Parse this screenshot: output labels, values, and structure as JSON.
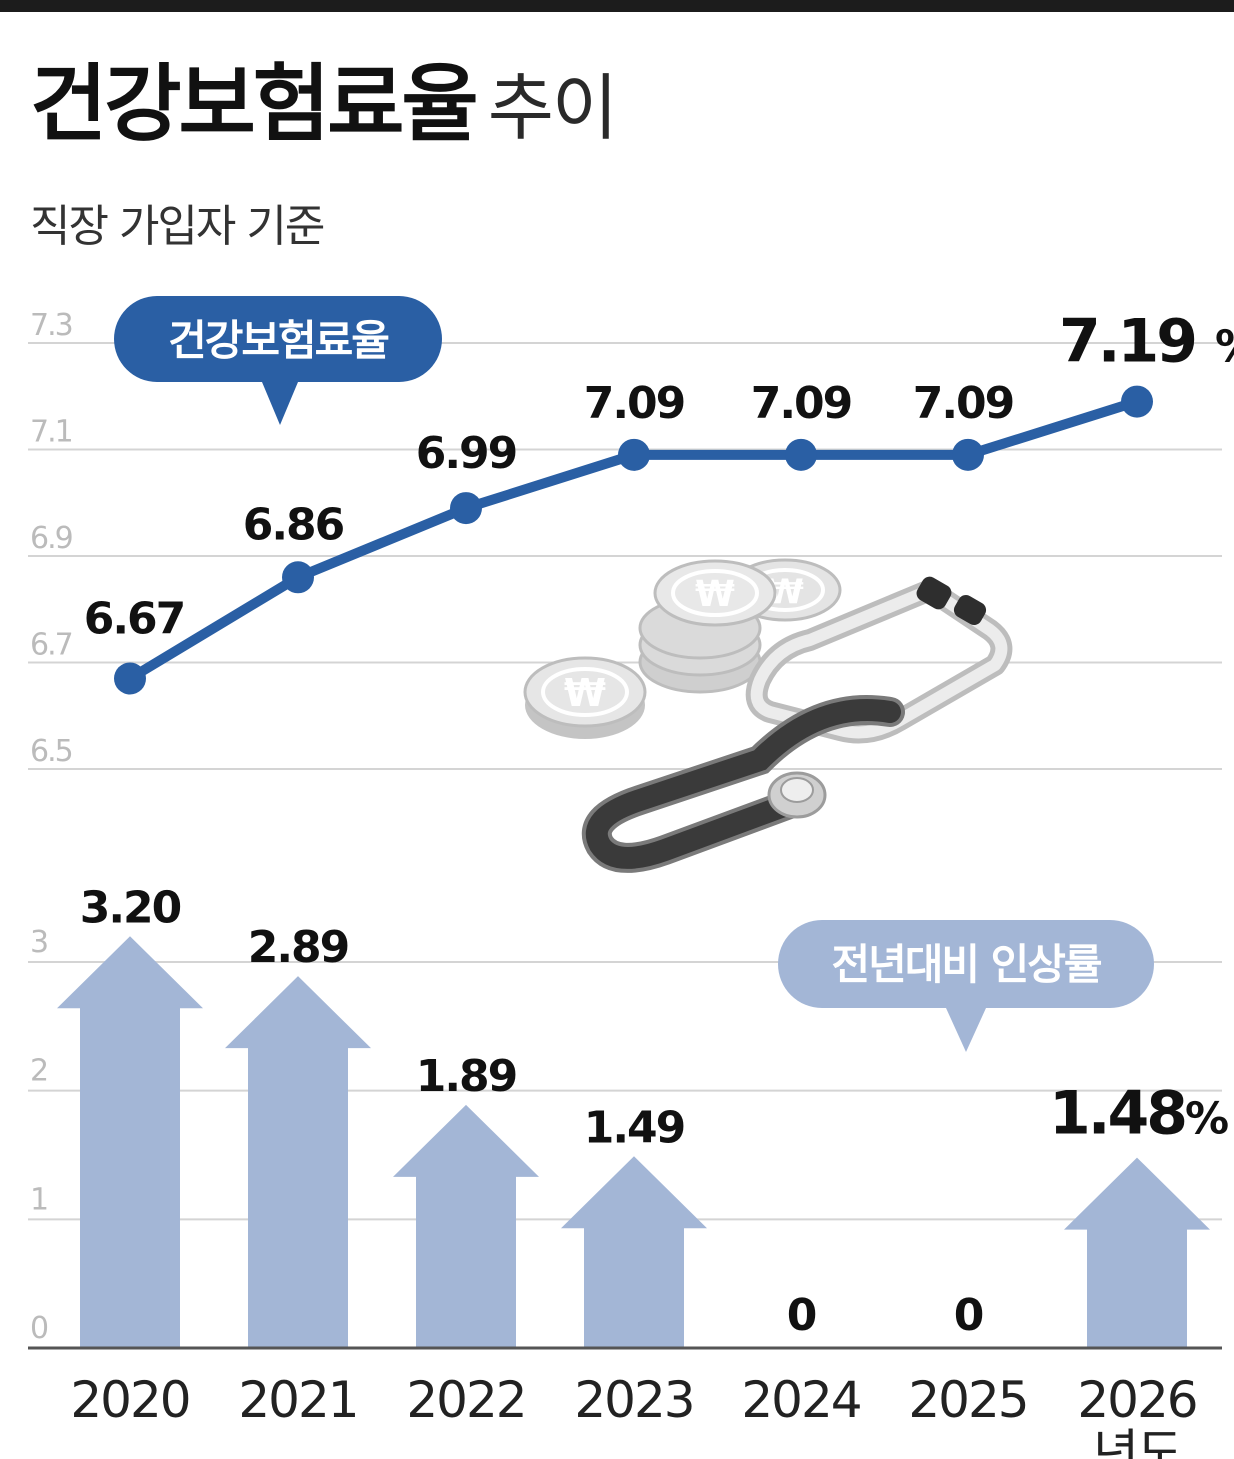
{
  "header": {
    "title_main": "건강보험료율",
    "title_sub": "추이",
    "subtitle": "직장 가입자 기준"
  },
  "colors": {
    "line": "#2a5fa4",
    "bar": "#a3b6d6",
    "grid": "#d4d4d4",
    "axis": "#555555",
    "illustration": "stethoscope-and-won-coins"
  },
  "chart_data": [
    {
      "type": "line",
      "legend_label": "건강보험료율",
      "x": [
        "2020",
        "2021",
        "2022",
        "2023",
        "2024",
        "2025",
        "2026"
      ],
      "series": [
        {
          "values": [
            6.67,
            6.86,
            6.99,
            7.09,
            7.09,
            7.09,
            7.19
          ]
        }
      ],
      "labels": [
        "6.67",
        "6.86",
        "6.99",
        "7.09",
        "7.09",
        "7.09",
        "7.19"
      ],
      "last_unit": "%",
      "ylim": [
        6.5,
        7.3
      ],
      "yticks": [
        "6.5",
        "6.7",
        "6.9",
        "7.1",
        "7.3"
      ],
      "grid": true
    },
    {
      "type": "bar",
      "legend_label": "전년대비 인상률",
      "categories": [
        "2020",
        "2021",
        "2022",
        "2023",
        "2024",
        "2025",
        "2026"
      ],
      "values": [
        3.2,
        2.89,
        1.89,
        1.49,
        0,
        0,
        1.48
      ],
      "labels": [
        "3.20",
        "2.89",
        "1.89",
        "1.49",
        "0",
        "0",
        "1.48"
      ],
      "last_unit": "%",
      "ylim": [
        0,
        3
      ],
      "yticks": [
        "0",
        "1",
        "2",
        "3"
      ],
      "grid": true,
      "xlabel_suffix": "년도"
    }
  ]
}
